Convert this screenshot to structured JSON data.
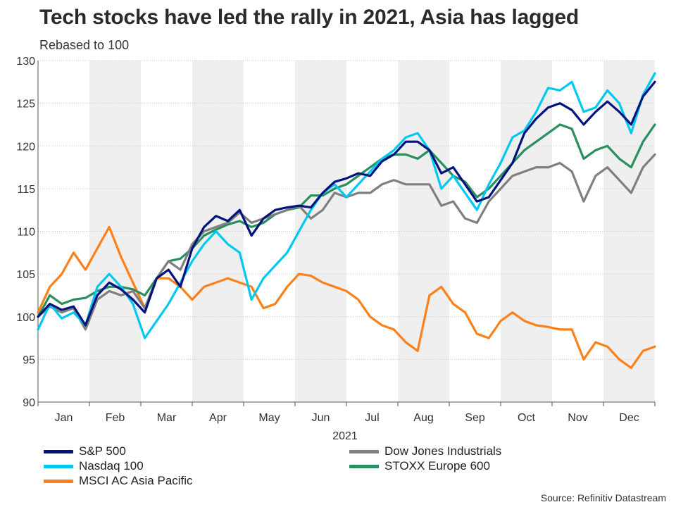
{
  "chart_data": {
    "type": "line",
    "title": "Tech stocks have led the rally in 2021, Asia has lagged",
    "subtitle": "Rebased to 100",
    "xlabel": "2021",
    "ylabel": "",
    "ylim": [
      90,
      130
    ],
    "yticks": [
      90,
      95,
      100,
      105,
      110,
      115,
      120,
      125,
      130
    ],
    "months": [
      "Jan",
      "Feb",
      "Mar",
      "Apr",
      "May",
      "Jun",
      "Jul",
      "Aug",
      "Sep",
      "Oct",
      "Nov",
      "Dec"
    ],
    "x_unit": "trading week of 2021 (0 = start of year, 52 = end of year)",
    "x": [
      0,
      1,
      2,
      3,
      4,
      5,
      6,
      7,
      8,
      9,
      10,
      11,
      12,
      13,
      14,
      15,
      16,
      17,
      18,
      19,
      20,
      21,
      22,
      23,
      24,
      25,
      26,
      27,
      28,
      29,
      30,
      31,
      32,
      33,
      34,
      35,
      36,
      37,
      38,
      39,
      40,
      41,
      42,
      43,
      44,
      45,
      46,
      47,
      48,
      49,
      50,
      51,
      52
    ],
    "series": [
      {
        "name": "S&P 500",
        "color": "#00137f",
        "values": [
          100,
          101.5,
          100.8,
          101.2,
          99,
          102.5,
          104,
          103.2,
          102,
          100.5,
          104.5,
          105.5,
          103.5,
          108,
          110.5,
          111.8,
          111.2,
          112.5,
          109.5,
          111.5,
          112.5,
          112.8,
          113,
          112.8,
          114.5,
          115.8,
          116.2,
          116.8,
          116.5,
          118.2,
          119,
          120.5,
          120.5,
          119.5,
          116.8,
          117.5,
          115.5,
          113.5,
          114,
          116,
          118,
          121.5,
          123.2,
          124.5,
          125,
          124.2,
          122.5,
          124,
          125.2,
          124,
          122.5,
          125.8,
          127.5
        ]
      },
      {
        "name": "Nasdaq 100",
        "color": "#00c8f0",
        "values": [
          98.5,
          101.5,
          99.8,
          100.5,
          99,
          103.5,
          105,
          103.5,
          101.5,
          97.5,
          99.5,
          101.5,
          104,
          106.5,
          108.5,
          110,
          108.5,
          107.5,
          102,
          104.5,
          106,
          107.5,
          110,
          112.5,
          114.5,
          115.5,
          114,
          115.5,
          117,
          118.5,
          119.5,
          121,
          121.5,
          119.5,
          115,
          116.5,
          114.5,
          112.5,
          115.5,
          118,
          121,
          121.8,
          124,
          126.8,
          126.5,
          127.5,
          124,
          124.5,
          126.5,
          125,
          121.5,
          126,
          128.5
        ]
      },
      {
        "name": "Dow Jones Industrials",
        "color": "#7f7f7f",
        "values": [
          100,
          101.2,
          100.5,
          101,
          98.5,
          102,
          103,
          102.5,
          103,
          101,
          104.5,
          106.5,
          105.5,
          108.5,
          110,
          110.5,
          111,
          112.2,
          111,
          111.5,
          112,
          112.5,
          113,
          111.5,
          112.5,
          114.5,
          114,
          114.5,
          114.5,
          115.5,
          116,
          115.5,
          115.5,
          115.5,
          113,
          113.5,
          111.5,
          111,
          113.5,
          115,
          116.5,
          117,
          117.5,
          117.5,
          118,
          117,
          113.5,
          116.5,
          117.5,
          116,
          114.5,
          117.5,
          119
        ]
      },
      {
        "name": "STOXX Europe 600",
        "color": "#2a8f5e",
        "values": [
          100,
          102.5,
          101.5,
          102,
          102.2,
          103,
          103.5,
          103.5,
          103.2,
          102.5,
          104.5,
          106.5,
          106.8,
          108,
          109.5,
          110.2,
          110.8,
          111.2,
          110.5,
          111,
          112,
          112.5,
          112.8,
          114.2,
          114.2,
          115,
          115.5,
          116.5,
          117.5,
          118.5,
          119,
          119,
          118.5,
          119.5,
          118,
          116.5,
          115.8,
          114,
          115,
          116.5,
          118,
          119.5,
          120.5,
          121.5,
          122.5,
          122,
          118.5,
          119.5,
          120,
          118.5,
          117.5,
          120.5,
          122.5
        ]
      },
      {
        "name": "MSCI AC Asia Pacific",
        "color": "#ff7f18",
        "values": [
          100.5,
          103.5,
          105,
          107.5,
          105.5,
          108,
          110.5,
          107,
          104,
          101,
          104.5,
          104.5,
          103.5,
          102,
          103.5,
          104,
          104.5,
          104,
          103.5,
          101,
          101.5,
          103.5,
          105,
          104.8,
          104,
          103.5,
          103,
          102,
          100,
          99,
          98.5,
          97,
          96,
          102.5,
          103.5,
          101.5,
          100.5,
          98,
          97.5,
          99.5,
          100.5,
          99.5,
          99,
          98.8,
          98.5,
          98.5,
          95,
          97,
          96.5,
          95,
          94,
          96,
          96.5
        ]
      }
    ],
    "legend": {
      "placement": "bottom",
      "items": [
        "S&P 500",
        "Dow Jones Industrials",
        "Nasdaq 100",
        "STOXX Europe 600",
        "MSCI AC Asia Pacific"
      ]
    },
    "grid": true,
    "shaded_months": [
      "Feb",
      "Apr",
      "Jun",
      "Aug",
      "Oct",
      "Dec"
    ],
    "source": "Source: Refinitiv Datastream"
  }
}
